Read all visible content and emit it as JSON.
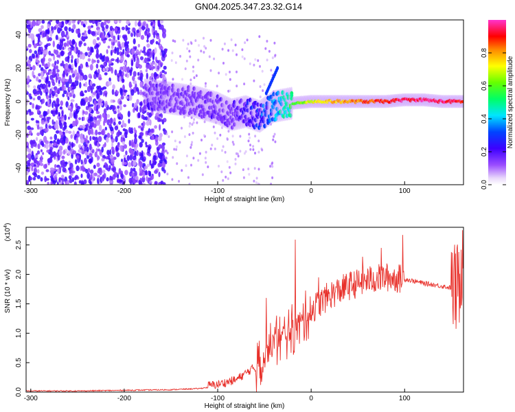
{
  "title": "GN04.2025.347.23.32.G14",
  "chart_data": [
    {
      "type": "heatmap",
      "xlabel": "Height of straight line (km)",
      "ylabel": "Frequency (Hz)",
      "xlim": [
        -305,
        163
      ],
      "ylim": [
        -50,
        49
      ],
      "xticks": [
        -300,
        -200,
        -100,
        0,
        100
      ],
      "yticks": [
        -40,
        -20,
        0,
        20,
        40
      ],
      "colorbar": {
        "label": "Normalized spectral amplitude",
        "range": [
          0.0,
          1.0
        ],
        "ticks": [
          0.0,
          0.2,
          0.4,
          0.6,
          0.8
        ],
        "tick_labels": [
          "0.0",
          "0.2",
          "0.4",
          "0.6",
          "0.8"
        ],
        "colormap": "rainbow (white-violet-blue-cyan-green-yellow-red-magenta)"
      },
      "ridge": {
        "description": "Dominant frequency track converging to ~0 Hz",
        "x": [
          -175,
          -150,
          -125,
          -100,
          -85,
          -70,
          -55,
          -40,
          -20,
          0,
          20,
          40,
          60,
          80,
          100,
          120,
          140,
          160
        ],
        "freq": [
          4,
          2,
          0,
          -4,
          -8,
          -6,
          -9,
          -3,
          -1,
          0,
          0,
          0,
          0,
          0,
          1,
          1,
          0,
          0
        ],
        "amplitude": [
          0.2,
          0.15,
          0.15,
          0.2,
          0.15,
          0.25,
          0.3,
          0.4,
          0.55,
          0.7,
          0.75,
          0.8,
          0.85,
          0.9,
          0.95,
          0.95,
          0.95,
          0.9
        ]
      }
    },
    {
      "type": "line",
      "series_name": "SNR",
      "xlabel": "Height of straight line (km)",
      "ylabel": "SNR (10 * v/v)",
      "yscale_label": "(x10",
      "yscale_exp": "4",
      "xlim": [
        -305,
        163
      ],
      "ylim": [
        0,
        2.8
      ],
      "xticks": [
        -300,
        -200,
        -100,
        0,
        100
      ],
      "yticks": [
        0.0,
        0.5,
        1.0,
        1.5,
        2.0,
        2.5
      ],
      "ytick_labels": [
        "0.0",
        "0.5",
        "1.0",
        "1.5",
        "2.0",
        "2.5"
      ],
      "color": "#e8302a",
      "x": [
        -305,
        -250,
        -200,
        -150,
        -120,
        -100,
        -80,
        -60,
        -50,
        -40,
        -30,
        -20,
        -10,
        0,
        20,
        40,
        60,
        80,
        100,
        120,
        140,
        150,
        155,
        158,
        160,
        163
      ],
      "y": [
        0.02,
        0.02,
        0.03,
        0.04,
        0.06,
        0.1,
        0.18,
        0.4,
        0.6,
        0.8,
        0.95,
        1.05,
        1.2,
        1.4,
        1.65,
        1.8,
        1.9,
        1.95,
        1.92,
        1.85,
        1.8,
        1.77,
        1.75,
        1.8,
        2.1,
        2.3
      ],
      "spikes": [
        {
          "x": -17,
          "y": 2.59
        },
        {
          "x": 98,
          "y": 2.67
        },
        {
          "x": 162,
          "y": 2.75
        },
        {
          "x": -48,
          "y": 1.6
        },
        {
          "x": -37,
          "y": 1.3
        },
        {
          "x": 55,
          "y": 2.3
        },
        {
          "x": 75,
          "y": 2.45
        },
        {
          "x": 8,
          "y": 1.95
        }
      ]
    }
  ]
}
